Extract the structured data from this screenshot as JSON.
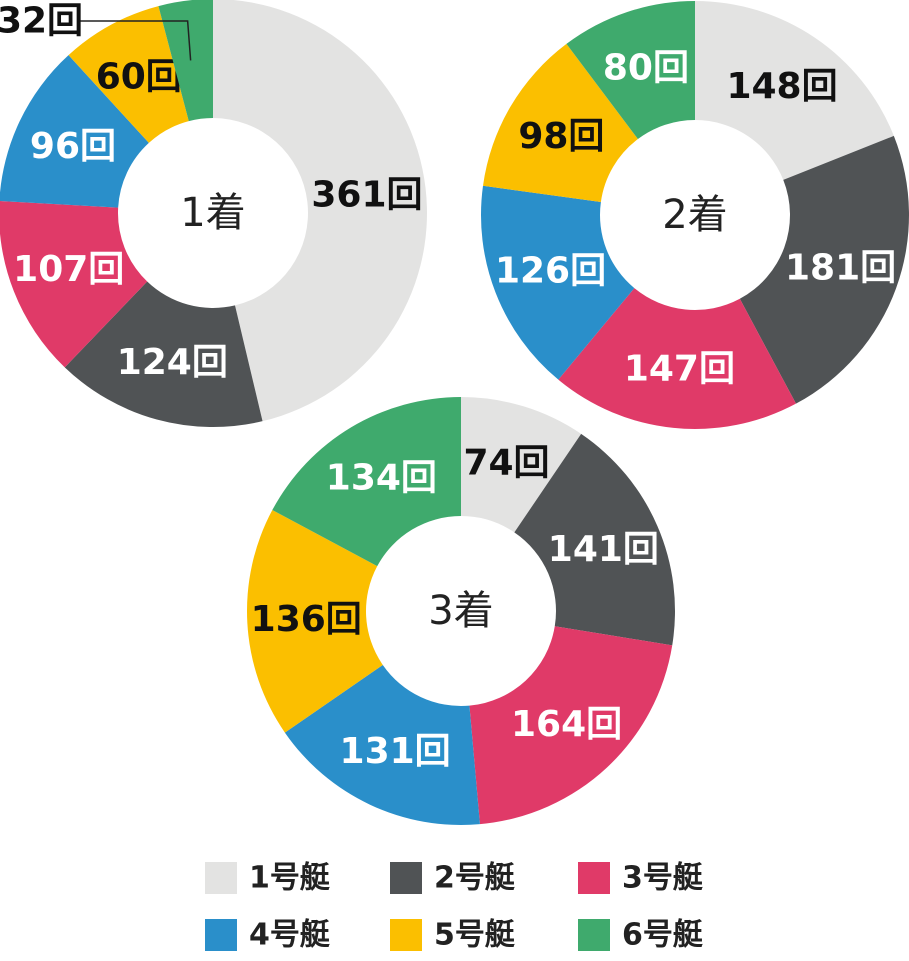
{
  "chart_data": [
    {
      "type": "pie",
      "title": "1着",
      "values": [
        361,
        124,
        107,
        96,
        60,
        32
      ],
      "value_labels": [
        "361回",
        "124回",
        "107回",
        "96回",
        "60回",
        "32回"
      ]
    },
    {
      "type": "pie",
      "title": "2着",
      "values": [
        148,
        181,
        147,
        126,
        98,
        80
      ],
      "value_labels": [
        "148回",
        "181回",
        "147回",
        "126回",
        "98回",
        "80回"
      ]
    },
    {
      "type": "pie",
      "title": "3着",
      "values": [
        74,
        141,
        164,
        131,
        136,
        134
      ],
      "value_labels": [
        "74回",
        "141回",
        "164回",
        "131回",
        "136回",
        "134回"
      ]
    }
  ],
  "legend": {
    "labels": [
      "1号艇",
      "2号艇",
      "3号艇",
      "4号艇",
      "5号艇",
      "6号艇"
    ],
    "colors": [
      "#e3e3e2",
      "#505355",
      "#e03a68",
      "#2a8fca",
      "#fbbf00",
      "#3faa6d"
    ]
  }
}
